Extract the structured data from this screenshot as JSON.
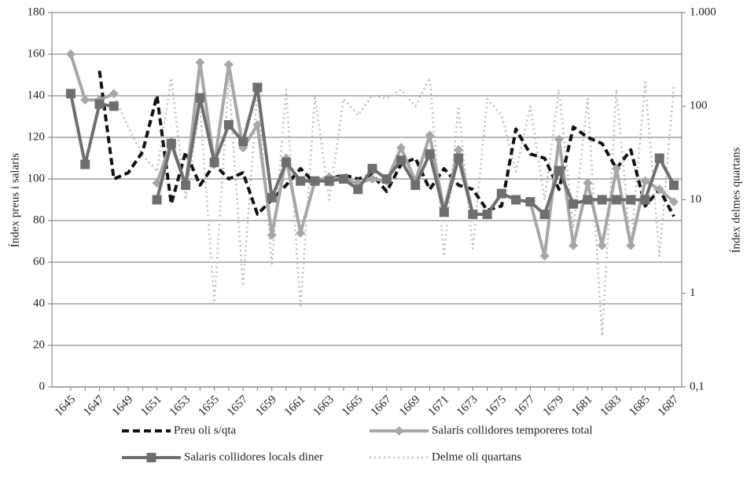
{
  "chart_data": {
    "type": "line",
    "categories": [
      "1645",
      null,
      "1647",
      null,
      "1649",
      null,
      "1651",
      null,
      "1653",
      null,
      "1655",
      null,
      "1657",
      null,
      "1659",
      null,
      "1661",
      null,
      "1663",
      null,
      "1665",
      null,
      "1667",
      null,
      "1669",
      null,
      "1671",
      null,
      "1673",
      null,
      "1675",
      null,
      "1677",
      null,
      "1679",
      null,
      "1681",
      null,
      "1683",
      null,
      "1685",
      null,
      "1687"
    ],
    "ylabel": "Índex preus i salaris",
    "y2label": "Índex delmes quartans",
    "ylim": [
      0,
      180
    ],
    "yticks": [
      0,
      20,
      40,
      60,
      80,
      100,
      120,
      140,
      160,
      180
    ],
    "y2lim": [
      0.1,
      1000
    ],
    "y2log": true,
    "y2ticks": [
      {
        "value": 0.1,
        "label": "0,1"
      },
      1,
      10,
      100,
      {
        "value": 1000,
        "label": "1.000"
      }
    ],
    "grid": true,
    "legend": "bottom",
    "series": [
      {
        "name": "Preu oli s/qta",
        "color": "#111111",
        "style": "dashed",
        "marker": "none",
        "values": [
          null,
          null,
          152,
          100,
          103,
          113,
          140,
          88,
          113,
          97,
          107,
          100,
          103,
          83,
          90,
          97,
          105,
          98,
          100,
          102,
          100,
          102,
          94,
          107,
          110,
          95,
          105,
          97,
          95,
          85,
          87,
          124,
          112,
          110,
          95,
          125,
          120,
          117,
          105,
          114,
          87,
          95,
          82
        ]
      },
      {
        "name": "Salaris collidores temporeres total",
        "color": "#a6a6a6",
        "style": "solid",
        "marker": "diamond",
        "values": [
          160,
          138,
          138,
          141,
          null,
          null,
          98,
          118,
          97,
          156,
          107,
          155,
          115,
          126,
          73,
          110,
          74,
          99,
          101,
          100,
          98,
          100,
          99,
          115,
          99,
          121,
          85,
          114,
          83,
          83,
          93,
          90,
          89,
          63,
          119,
          68,
          98,
          68,
          105,
          68,
          99,
          95,
          89
        ]
      },
      {
        "name": "Salaris collidores locals diner",
        "color": "#6e6e6e",
        "style": "solid",
        "marker": "square",
        "values": [
          141,
          107,
          136,
          135,
          null,
          null,
          90,
          117,
          97,
          139,
          108,
          126,
          118,
          144,
          91,
          108,
          99,
          99,
          99,
          100,
          95,
          105,
          100,
          109,
          97,
          112,
          84,
          110,
          83,
          83,
          93,
          90,
          89,
          83,
          104,
          88,
          90,
          90,
          90,
          90,
          90,
          110,
          97
        ]
      },
      {
        "name": "Delme oli quartans",
        "color": "#bdbdbd",
        "style": "dotted",
        "marker": "none",
        "axis": "y2",
        "values": [
          null,
          null,
          null,
          130,
          60,
          30,
          20,
          200,
          10,
          100,
          0.8,
          200,
          1.2,
          150,
          2,
          150,
          0.7,
          130,
          10,
          120,
          80,
          130,
          120,
          150,
          100,
          200,
          2.5,
          100,
          3,
          120,
          80,
          20,
          100,
          10,
          150,
          5,
          120,
          0.35,
          150,
          3,
          180,
          2.5,
          170
        ]
      }
    ]
  }
}
